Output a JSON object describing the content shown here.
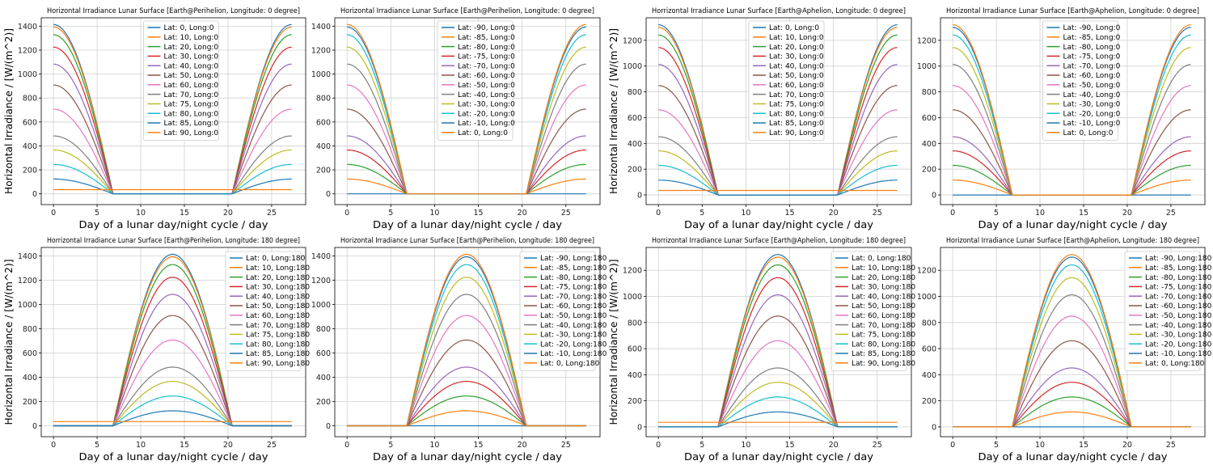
{
  "figure": {
    "x_axis_label": "Day of a lunar day/night cycle / day",
    "y_axis_label": "Horizontal Irradiance / [W/(m^2)]"
  },
  "chart_data": [
    {
      "type": "line",
      "title": "Horizontal Irradiance Lunar Surface [Earth@Perihelion, Longitude: 0 degree]",
      "xlabel": "Day of a lunar day/night cycle / day",
      "ylabel": "Horizontal Irradiance / [W/(m^2)]",
      "xlim": [
        -1.4,
        28.9
      ],
      "ylim": [
        -90,
        1470
      ],
      "x_ticks": [
        0,
        5,
        10,
        15,
        20,
        25
      ],
      "y_ticks": [
        0,
        200,
        400,
        600,
        800,
        1000,
        1200,
        1400
      ],
      "grid": true,
      "legend_position": "upper center",
      "longitude": 0,
      "peak_value": 1414,
      "day_length": 27.3,
      "series": [
        {
          "name": "Lat: 0, Long:0",
          "color": "#1f77b4",
          "latitude": 0
        },
        {
          "name": "Lat: 10, Long:0",
          "color": "#ff7f0e",
          "latitude": 10
        },
        {
          "name": "Lat: 20, Long:0",
          "color": "#2ca02c",
          "latitude": 20
        },
        {
          "name": "Lat: 30, Long:0",
          "color": "#d62728",
          "latitude": 30
        },
        {
          "name": "Lat: 40, Long:0",
          "color": "#9467bd",
          "latitude": 40
        },
        {
          "name": "Lat: 50, Long:0",
          "color": "#8c564b",
          "latitude": 50
        },
        {
          "name": "Lat: 60, Long:0",
          "color": "#e377c2",
          "latitude": 60
        },
        {
          "name": "Lat: 70, Long:0",
          "color": "#7f7f7f",
          "latitude": 70
        },
        {
          "name": "Lat: 75, Long:0",
          "color": "#bcbd22",
          "latitude": 75
        },
        {
          "name": "Lat: 80, Long:0",
          "color": "#17becf",
          "latitude": 80
        },
        {
          "name": "Lat: 85, Long:0",
          "color": "#1f77b4",
          "latitude": 85
        },
        {
          "name": "Lat: 90, Long:0",
          "color": "#ff7f0e",
          "latitude": 90
        }
      ]
    },
    {
      "type": "line",
      "title": "Horizontal Irradiance Lunar Surface [Earth@Perihelion, Longitude: 0 degree]",
      "xlabel": "Day of a lunar day/night cycle / day",
      "ylabel": "",
      "xlim": [
        -1.4,
        28.9
      ],
      "ylim": [
        -90,
        1470
      ],
      "x_ticks": [
        0,
        5,
        10,
        15,
        20,
        25
      ],
      "y_ticks": [
        0,
        200,
        400,
        600,
        800,
        1000,
        1200,
        1400
      ],
      "grid": true,
      "legend_position": "upper center",
      "longitude": 0,
      "peak_value": 1414,
      "day_length": 27.3,
      "series": [
        {
          "name": "Lat: -90, Long:0",
          "color": "#1f77b4",
          "latitude": -90
        },
        {
          "name": "Lat: -85, Long:0",
          "color": "#ff7f0e",
          "latitude": -85
        },
        {
          "name": "Lat: -80, Long:0",
          "color": "#2ca02c",
          "latitude": -80
        },
        {
          "name": "Lat: -75, Long:0",
          "color": "#d62728",
          "latitude": -75
        },
        {
          "name": "Lat: -70, Long:0",
          "color": "#9467bd",
          "latitude": -70
        },
        {
          "name": "Lat: -60, Long:0",
          "color": "#8c564b",
          "latitude": -60
        },
        {
          "name": "Lat: -50, Long:0",
          "color": "#e377c2",
          "latitude": -50
        },
        {
          "name": "Lat: -40, Long:0",
          "color": "#7f7f7f",
          "latitude": -40
        },
        {
          "name": "Lat: -30, Long:0",
          "color": "#bcbd22",
          "latitude": -30
        },
        {
          "name": "Lat: -20, Long:0",
          "color": "#17becf",
          "latitude": -20
        },
        {
          "name": "Lat: -10, Long:0",
          "color": "#1f77b4",
          "latitude": -10
        },
        {
          "name": "Lat: 0, Long:0",
          "color": "#ff7f0e",
          "latitude": 0
        }
      ]
    },
    {
      "type": "line",
      "title": "Horrizontal Irradiance Lunar Surface [Earth@Aphelion, Longitude: 0 degree]",
      "xlabel": "Day of a lunar day/night cycle / day",
      "ylabel": "Horizontal Irradiance / [W/(m^2)]",
      "xlim": [
        -1.4,
        28.9
      ],
      "ylim": [
        -75,
        1375
      ],
      "x_ticks": [
        0,
        5,
        10,
        15,
        20,
        25
      ],
      "y_ticks": [
        0,
        200,
        400,
        600,
        800,
        1000,
        1200
      ],
      "grid": true,
      "legend_position": "upper center",
      "longitude": 0,
      "peak_value": 1321,
      "day_length": 27.3,
      "series": [
        {
          "name": "Lat: 0, Long:0",
          "color": "#1f77b4",
          "latitude": 0
        },
        {
          "name": "Lat: 10, Long:0",
          "color": "#ff7f0e",
          "latitude": 10
        },
        {
          "name": "Lat: 20, Long:0",
          "color": "#2ca02c",
          "latitude": 20
        },
        {
          "name": "Lat: 30, Long:0",
          "color": "#d62728",
          "latitude": 30
        },
        {
          "name": "Lat: 40, Long:0",
          "color": "#9467bd",
          "latitude": 40
        },
        {
          "name": "Lat: 50, Long:0",
          "color": "#8c564b",
          "latitude": 50
        },
        {
          "name": "Lat: 60, Long:0",
          "color": "#e377c2",
          "latitude": 60
        },
        {
          "name": "Lat: 70, Long:0",
          "color": "#7f7f7f",
          "latitude": 70
        },
        {
          "name": "Lat: 75, Long:0",
          "color": "#bcbd22",
          "latitude": 75
        },
        {
          "name": "Lat: 80, Long:0",
          "color": "#17becf",
          "latitude": 80
        },
        {
          "name": "Lat: 85, Long:0",
          "color": "#1f77b4",
          "latitude": 85
        },
        {
          "name": "Lat: 90, Long:0",
          "color": "#ff7f0e",
          "latitude": 90
        }
      ]
    },
    {
      "type": "line",
      "title": "Horizontal Irradiance Lunar Surface [Earth@Aphelion, Longitude: 0 degree]",
      "xlabel": "Day of a lunar day/night cycle / day",
      "ylabel": "",
      "xlim": [
        -1.4,
        28.9
      ],
      "ylim": [
        -75,
        1375
      ],
      "x_ticks": [
        0,
        5,
        10,
        15,
        20,
        25
      ],
      "y_ticks": [
        0,
        200,
        400,
        600,
        800,
        1000,
        1200
      ],
      "grid": true,
      "legend_position": "upper center",
      "longitude": 0,
      "peak_value": 1321,
      "day_length": 27.3,
      "series": [
        {
          "name": "Lat: -90, Long:0",
          "color": "#1f77b4",
          "latitude": -90
        },
        {
          "name": "Lat: -85, Long:0",
          "color": "#ff7f0e",
          "latitude": -85
        },
        {
          "name": "Lat: -80, Long:0",
          "color": "#2ca02c",
          "latitude": -80
        },
        {
          "name": "Lat: -75, Long:0",
          "color": "#d62728",
          "latitude": -75
        },
        {
          "name": "Lat: -70, Long:0",
          "color": "#9467bd",
          "latitude": -70
        },
        {
          "name": "Lat: -60, Long:0",
          "color": "#8c564b",
          "latitude": -60
        },
        {
          "name": "Lat: -50, Long:0",
          "color": "#e377c2",
          "latitude": -50
        },
        {
          "name": "Lat: -40, Long:0",
          "color": "#7f7f7f",
          "latitude": -40
        },
        {
          "name": "Lat: -30, Long:0",
          "color": "#bcbd22",
          "latitude": -30
        },
        {
          "name": "Lat: -20, Long:0",
          "color": "#17becf",
          "latitude": -20
        },
        {
          "name": "Lat: -10, Long:0",
          "color": "#1f77b4",
          "latitude": -10
        },
        {
          "name": "Lat: 0, Long:0",
          "color": "#ff7f0e",
          "latitude": 0
        }
      ]
    },
    {
      "type": "line",
      "title": "Horrizontal Irradiance Lunar Surface [Earth@Perihelion, Longitude: 180 degree]",
      "xlabel": "Day of a lunar day/night cycle / day",
      "ylabel": "Horizontal Irradiance / [W/(m^2)]",
      "xlim": [
        -1.4,
        28.9
      ],
      "ylim": [
        -90,
        1470
      ],
      "x_ticks": [
        0,
        5,
        10,
        15,
        20,
        25
      ],
      "y_ticks": [
        0,
        200,
        400,
        600,
        800,
        1000,
        1200,
        1400
      ],
      "grid": true,
      "legend_position": "upper right",
      "longitude": 180,
      "peak_value": 1414,
      "day_length": 27.3,
      "series": [
        {
          "name": "Lat: 0, Long:180",
          "color": "#1f77b4",
          "latitude": 0
        },
        {
          "name": "Lat: 10, Long:180",
          "color": "#ff7f0e",
          "latitude": 10
        },
        {
          "name": "Lat: 20, Long:180",
          "color": "#2ca02c",
          "latitude": 20
        },
        {
          "name": "Lat: 30, Long:180",
          "color": "#d62728",
          "latitude": 30
        },
        {
          "name": "Lat: 40, Long:180",
          "color": "#9467bd",
          "latitude": 40
        },
        {
          "name": "Lat: 50, Long:180",
          "color": "#8c564b",
          "latitude": 50
        },
        {
          "name": "Lat: 60, Long:180",
          "color": "#e377c2",
          "latitude": 60
        },
        {
          "name": "Lat: 70, Long:180",
          "color": "#7f7f7f",
          "latitude": 70
        },
        {
          "name": "Lat: 75, Long:180",
          "color": "#bcbd22",
          "latitude": 75
        },
        {
          "name": "Lat: 80, Long:180",
          "color": "#17becf",
          "latitude": 80
        },
        {
          "name": "Lat: 85, Long:180",
          "color": "#1f77b4",
          "latitude": 85
        },
        {
          "name": "Lat: 90, Long:180",
          "color": "#ff7f0e",
          "latitude": 90
        }
      ]
    },
    {
      "type": "line",
      "title": "Horizontal Irradiance Lunar Surface [Earth@Perihelion, Longitude: 180 degree]",
      "xlabel": "Day of a lunar day/night cycle / day",
      "ylabel": "",
      "xlim": [
        -1.4,
        28.9
      ],
      "ylim": [
        -90,
        1470
      ],
      "x_ticks": [
        0,
        5,
        10,
        15,
        20,
        25
      ],
      "y_ticks": [
        0,
        200,
        400,
        600,
        800,
        1000,
        1200,
        1400
      ],
      "grid": true,
      "legend_position": "upper right",
      "longitude": 180,
      "peak_value": 1414,
      "day_length": 27.3,
      "series": [
        {
          "name": "Lat: -90, Long:180",
          "color": "#1f77b4",
          "latitude": -90
        },
        {
          "name": "Lat: -85, Long:180",
          "color": "#ff7f0e",
          "latitude": -85
        },
        {
          "name": "Lat: -80, Long:180",
          "color": "#2ca02c",
          "latitude": -80
        },
        {
          "name": "Lat: -75, Long:180",
          "color": "#d62728",
          "latitude": -75
        },
        {
          "name": "Lat: -70, Long:180",
          "color": "#9467bd",
          "latitude": -70
        },
        {
          "name": "Lat: -60, Long:180",
          "color": "#8c564b",
          "latitude": -60
        },
        {
          "name": "Lat: -50, Long:180",
          "color": "#e377c2",
          "latitude": -50
        },
        {
          "name": "Lat: -40, Long:180",
          "color": "#7f7f7f",
          "latitude": -40
        },
        {
          "name": "Lat: -30, Long:180",
          "color": "#bcbd22",
          "latitude": -30
        },
        {
          "name": "Lat: -20, Long:180",
          "color": "#17becf",
          "latitude": -20
        },
        {
          "name": "Lat: -10, Long:180",
          "color": "#1f77b4",
          "latitude": -10
        },
        {
          "name": "Lat: 0, Long:180",
          "color": "#ff7f0e",
          "latitude": 0
        }
      ]
    },
    {
      "type": "line",
      "title": "Horrizontal Irradiance Lunar Surface [Earth@Aphelion, Longitude: 180 degree]",
      "xlabel": "Day of a lunar day/night cycle / day",
      "ylabel": "Horizontal Irradiance / [W/(m^2)]",
      "xlim": [
        -1.4,
        28.9
      ],
      "ylim": [
        -75,
        1375
      ],
      "x_ticks": [
        0,
        5,
        10,
        15,
        20,
        25
      ],
      "y_ticks": [
        0,
        200,
        400,
        600,
        800,
        1000,
        1200
      ],
      "grid": true,
      "legend_position": "upper right",
      "longitude": 180,
      "peak_value": 1321,
      "day_length": 27.3,
      "series": [
        {
          "name": "Lat: 0, Long:180",
          "color": "#1f77b4",
          "latitude": 0
        },
        {
          "name": "Lat: 10, Long:180",
          "color": "#ff7f0e",
          "latitude": 10
        },
        {
          "name": "Lat: 20, Long:180",
          "color": "#2ca02c",
          "latitude": 20
        },
        {
          "name": "Lat: 30, Long:180",
          "color": "#d62728",
          "latitude": 30
        },
        {
          "name": "Lat: 40, Long:180",
          "color": "#9467bd",
          "latitude": 40
        },
        {
          "name": "Lat: 50, Long:180",
          "color": "#8c564b",
          "latitude": 50
        },
        {
          "name": "Lat: 60, Long:180",
          "color": "#e377c2",
          "latitude": 60
        },
        {
          "name": "Lat: 70, Long:180",
          "color": "#7f7f7f",
          "latitude": 70
        },
        {
          "name": "Lat: 75, Long:180",
          "color": "#bcbd22",
          "latitude": 75
        },
        {
          "name": "Lat: 80, Long:180",
          "color": "#17becf",
          "latitude": 80
        },
        {
          "name": "Lat: 85, Long:180",
          "color": "#1f77b4",
          "latitude": 85
        },
        {
          "name": "Lat: 90, Long:180",
          "color": "#ff7f0e",
          "latitude": 90
        }
      ]
    },
    {
      "type": "line",
      "title": "Horizontal Irradiance Lunar Surface [Earth@Aphelion, Longitude: 180 degree]",
      "xlabel": "Day of a lunar day/night cycle / day",
      "ylabel": "",
      "xlim": [
        -1.4,
        28.9
      ],
      "ylim": [
        -75,
        1375
      ],
      "x_ticks": [
        0,
        5,
        10,
        15,
        20,
        25
      ],
      "y_ticks": [
        0,
        200,
        400,
        600,
        800,
        1000,
        1200
      ],
      "grid": true,
      "legend_position": "upper right",
      "longitude": 180,
      "peak_value": 1321,
      "day_length": 27.3,
      "series": [
        {
          "name": "Lat: -90, Long:180",
          "color": "#1f77b4",
          "latitude": -90
        },
        {
          "name": "Lat: -85, Long:180",
          "color": "#ff7f0e",
          "latitude": -85
        },
        {
          "name": "Lat: -80, Long:180",
          "color": "#2ca02c",
          "latitude": -80
        },
        {
          "name": "Lat: -75, Long:180",
          "color": "#d62728",
          "latitude": -75
        },
        {
          "name": "Lat: -70, Long:180",
          "color": "#9467bd",
          "latitude": -70
        },
        {
          "name": "Lat: -60, Long:180",
          "color": "#8c564b",
          "latitude": -60
        },
        {
          "name": "Lat: -50, Long:180",
          "color": "#e377c2",
          "latitude": -50
        },
        {
          "name": "Lat: -40, Long:180",
          "color": "#7f7f7f",
          "latitude": -40
        },
        {
          "name": "Lat: -30, Long:180",
          "color": "#bcbd22",
          "latitude": -30
        },
        {
          "name": "Lat: -20, Long:180",
          "color": "#17becf",
          "latitude": -20
        },
        {
          "name": "Lat: -10, Long:180",
          "color": "#1f77b4",
          "latitude": -10
        },
        {
          "name": "Lat: 0, Long:180",
          "color": "#ff7f0e",
          "latitude": 0
        }
      ]
    }
  ]
}
